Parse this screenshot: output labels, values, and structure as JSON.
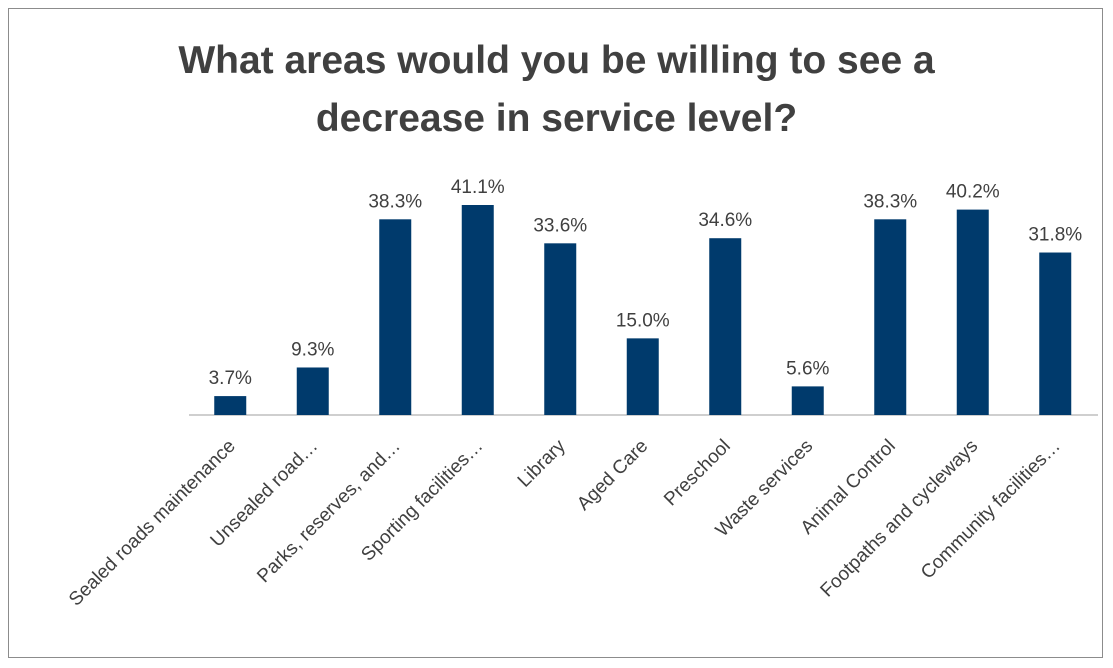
{
  "chart_data": {
    "type": "bar",
    "title_lines": [
      "What areas would you be willing to see a",
      "decrease in service level?"
    ],
    "categories": [
      "Sealed roads maintenance",
      "Unsealed road…",
      "Parks, reserves, and…",
      "Sporting facilities…",
      "Library",
      "Aged Care",
      "Preschool",
      "Waste services",
      "Animal Control",
      "Footpaths and cycleways",
      "Community facilities…"
    ],
    "values": [
      3.7,
      9.3,
      38.3,
      41.1,
      33.6,
      15.0,
      34.6,
      5.6,
      38.3,
      40.2,
      31.8
    ],
    "data_labels": [
      "3.7%",
      "9.3%",
      "38.3%",
      "41.1%",
      "33.6%",
      "15.0%",
      "34.6%",
      "5.6%",
      "38.3%",
      "40.2%",
      "31.8%"
    ],
    "bar_color": "#003a6c",
    "ylim": [
      0,
      41.1
    ],
    "grid": false,
    "legend": "none",
    "x_tick_rotation_deg": -45
  }
}
